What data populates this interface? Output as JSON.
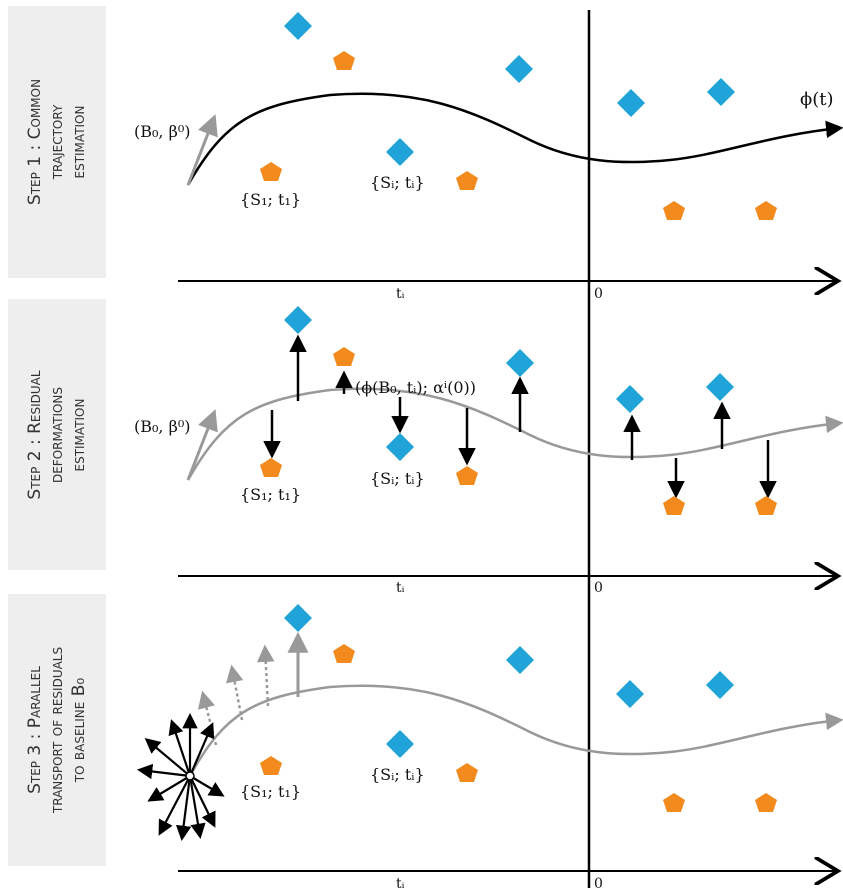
{
  "panels": [
    {
      "id": "step1",
      "label_lines": [
        "Step 1 : Common",
        "trajectory",
        "estimation"
      ],
      "phi_label": "ϕ(t)",
      "init_label": "(B₀, β⁰)",
      "s1_label": "{S₁; t₁}",
      "si_label": "{Sᵢ; tᵢ}",
      "axis_tick_left": "tᵢ",
      "axis_tick_zero": "0"
    },
    {
      "id": "step2",
      "label_lines": [
        "Step 2 : Residual",
        "deformations",
        "estimation"
      ],
      "init_label": "(B₀, β⁰)",
      "residual_label": "(ϕ(B₀, tᵢ); αⁱ(0))",
      "s1_label": "{S₁; t₁}",
      "si_label": "{Sᵢ; tᵢ}",
      "axis_tick_left": "tᵢ",
      "axis_tick_zero": "0"
    },
    {
      "id": "step3",
      "label_lines": [
        "Step 3 : Parallel",
        "transport of residuals",
        "to baseline B₀"
      ],
      "s1_label": "{S₁; t₁}",
      "si_label": "{Sᵢ; tᵢ}",
      "axis_tick_left": "tᵢ",
      "axis_tick_zero": "0"
    }
  ],
  "colors": {
    "diamond": "#1fa3d8",
    "pentagon": "#f28a1e",
    "curve_step1": "#000000",
    "curve_gray": "#999999",
    "label_bg": "#eeeeee"
  }
}
